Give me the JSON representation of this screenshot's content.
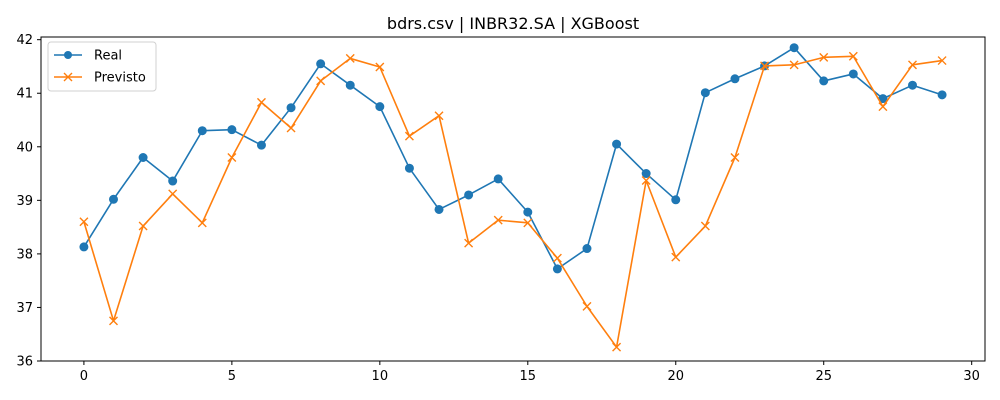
{
  "chart_data": {
    "type": "line",
    "title": "bdrs.csv | INBR32.SA | XGBoost",
    "xlabel": "",
    "ylabel": "",
    "x": [
      0,
      1,
      2,
      3,
      4,
      5,
      6,
      7,
      8,
      9,
      10,
      11,
      12,
      13,
      14,
      15,
      16,
      17,
      18,
      19,
      20,
      21,
      22,
      23,
      24,
      25,
      26,
      27,
      28,
      29
    ],
    "xlim": [
      -1.45,
      30.45
    ],
    "ylim": [
      36,
      42.05
    ],
    "xticks": [
      "0",
      "5",
      "10",
      "15",
      "20",
      "25",
      "30"
    ],
    "yticks": [
      "36",
      "37",
      "38",
      "39",
      "40",
      "41",
      "42"
    ],
    "grid": false,
    "legend_position": "top-left",
    "series": [
      {
        "name": "Real",
        "color": "#1f77b4",
        "marker": "circle",
        "values": [
          38.13,
          39.02,
          39.8,
          39.36,
          40.3,
          40.32,
          40.03,
          40.73,
          41.55,
          41.15,
          40.75,
          39.6,
          38.83,
          39.1,
          39.4,
          38.78,
          37.72,
          38.1,
          40.05,
          39.5,
          39.01,
          41.01,
          41.27,
          41.51,
          41.85,
          41.23,
          41.36,
          40.9,
          41.15,
          40.97
        ]
      },
      {
        "name": "Previsto",
        "color": "#ff7f0e",
        "marker": "x",
        "values": [
          38.6,
          36.75,
          38.52,
          39.12,
          38.58,
          39.8,
          40.83,
          40.35,
          41.23,
          41.65,
          41.49,
          40.2,
          40.58,
          38.2,
          38.63,
          38.58,
          37.92,
          37.02,
          36.26,
          39.37,
          37.94,
          38.52,
          39.8,
          41.51,
          41.53,
          41.67,
          41.69,
          40.75,
          41.53,
          41.61
        ]
      }
    ]
  }
}
